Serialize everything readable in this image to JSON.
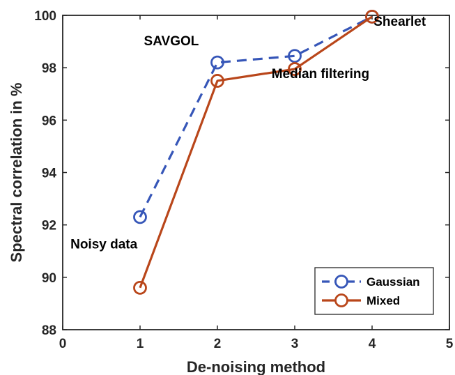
{
  "chart_data": {
    "type": "line",
    "xlabel": "De-noising method",
    "ylabel": "Spectral correlation in %",
    "xlim": [
      0,
      5
    ],
    "ylim": [
      88,
      100
    ],
    "xticks": [
      0,
      1,
      2,
      3,
      4,
      5
    ],
    "yticks": [
      88,
      90,
      92,
      94,
      96,
      98,
      100
    ],
    "grid": false,
    "legend_position": "bottom-right",
    "series": [
      {
        "name": "Gaussian",
        "x": [
          1,
          2,
          3,
          4
        ],
        "y": [
          92.3,
          98.2,
          98.45,
          99.95
        ],
        "color": "#3656b8",
        "line_style": "dashed",
        "marker": "circle"
      },
      {
        "name": "Mixed",
        "x": [
          1,
          2,
          3,
          4
        ],
        "y": [
          89.6,
          97.5,
          97.95,
          99.95
        ],
        "color": "#b9461a",
        "line_style": "solid",
        "marker": "circle"
      }
    ],
    "annotations": [
      {
        "text": "Noisy data",
        "x": 0.1,
        "y": 91.1
      },
      {
        "text": "SAVGOL",
        "x": 1.05,
        "y": 98.85
      },
      {
        "text": "Median filtering",
        "x": 2.7,
        "y": 97.6
      },
      {
        "text": "Shearlet",
        "x": 4.02,
        "y": 99.6
      }
    ]
  }
}
